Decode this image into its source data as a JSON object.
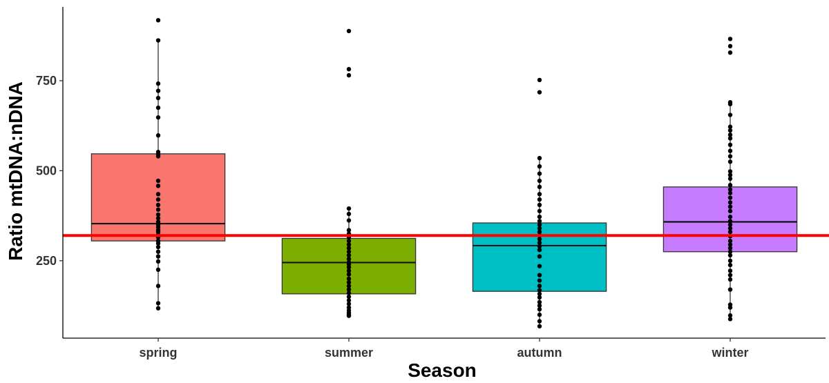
{
  "chart_data": {
    "type": "box",
    "title": "",
    "xlabel": "Season",
    "ylabel": "Ratio mtDNA:nDNA",
    "ylim": [
      35,
      955
    ],
    "y_ticks": [
      250,
      500,
      750
    ],
    "grid": false,
    "legend": "none",
    "reference_line": {
      "value": 320,
      "color": "#ff0000"
    },
    "categories": [
      "spring",
      "summer",
      "autumn",
      "winter"
    ],
    "boxes": [
      {
        "category": "spring",
        "color": "#f8766d",
        "q1": 305,
        "median": 353,
        "q3": 547,
        "whisker_low": 118,
        "whisker_high": 862,
        "points": [
          918,
          862,
          742,
          722,
          702,
          675,
          648,
          598,
          552,
          545,
          540,
          472,
          458,
          435,
          420,
          405,
          392,
          378,
          368,
          358,
          350,
          343,
          335,
          330,
          322,
          315,
          305,
          298,
          288,
          275,
          262,
          248,
          225,
          180,
          132,
          118
        ]
      },
      {
        "category": "summer",
        "color": "#7cae00",
        "q1": 158,
        "median": 245,
        "q3": 312,
        "whisker_low": 97,
        "whisker_high": 395,
        "points": [
          888,
          782,
          765,
          395,
          380,
          362,
          335,
          325,
          315,
          305,
          295,
          285,
          275,
          265,
          255,
          245,
          240,
          232,
          222,
          212,
          200,
          190,
          180,
          170,
          160,
          150,
          140,
          130,
          120,
          112,
          105,
          100,
          97
        ]
      },
      {
        "category": "autumn",
        "color": "#00bfc4",
        "q1": 165,
        "median": 292,
        "q3": 355,
        "whisker_low": 68,
        "whisker_high": 535,
        "points": [
          752,
          718,
          535,
          512,
          492,
          472,
          455,
          435,
          420,
          405,
          388,
          372,
          360,
          350,
          340,
          330,
          320,
          310,
          300,
          290,
          280,
          262,
          235,
          210,
          195,
          180,
          168,
          158,
          148,
          135,
          125,
          115,
          100,
          82,
          68
        ]
      },
      {
        "category": "winter",
        "color": "#c77cff",
        "q1": 275,
        "median": 358,
        "q3": 455,
        "whisker_low": 88,
        "whisker_high": 690,
        "points": [
          866,
          846,
          828,
          690,
          685,
          655,
          622,
          612,
          600,
          590,
          572,
          555,
          540,
          525,
          498,
          488,
          478,
          460,
          448,
          438,
          425,
          412,
          400,
          388,
          372,
          360,
          350,
          340,
          330,
          318,
          305,
          295,
          285,
          275,
          265,
          250,
          238,
          222,
          210,
          198,
          170,
          128,
          120,
          98,
          88
        ]
      }
    ]
  }
}
